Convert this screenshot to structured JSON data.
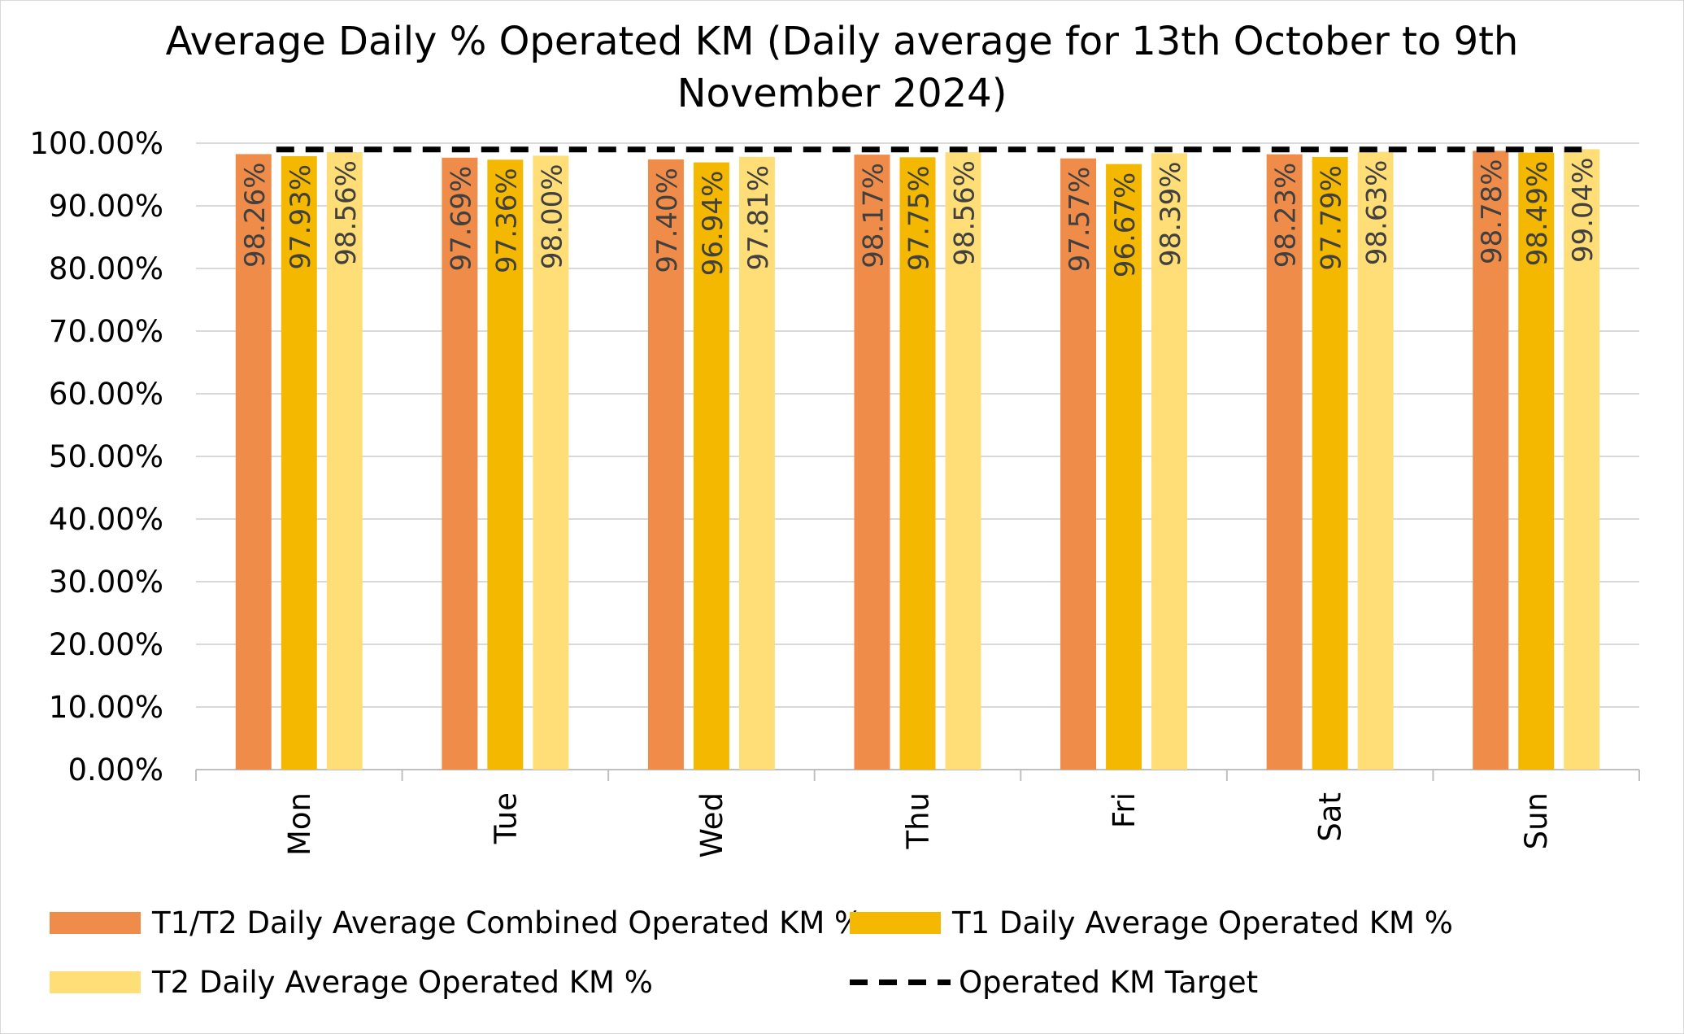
{
  "chart_data": {
    "type": "bar",
    "title_line1": "Average Daily % Operated KM (Daily average for 13th October to 9th",
    "title_line2": "November 2024)",
    "categories": [
      "Mon",
      "Tue",
      "Wed",
      "Thu",
      "Fri",
      "Sat",
      "Sun"
    ],
    "series": [
      {
        "name": "T1/T2 Daily Average Combined Operated KM %",
        "color": "#F08C4A",
        "values": [
          98.26,
          97.69,
          97.4,
          98.17,
          97.57,
          98.23,
          98.78
        ],
        "labels": [
          "98.26%",
          "97.69%",
          "97.40%",
          "98.17%",
          "97.57%",
          "98.23%",
          "98.78%"
        ]
      },
      {
        "name": "T1 Daily Average Operated KM %",
        "color": "#F5B800",
        "values": [
          97.93,
          97.36,
          96.94,
          97.75,
          96.67,
          97.79,
          98.49
        ],
        "labels": [
          "97.93%",
          "97.36%",
          "96.94%",
          "97.75%",
          "96.67%",
          "97.79%",
          "98.49%"
        ]
      },
      {
        "name": "T2 Daily Average Operated KM %",
        "color": "#FFDD77",
        "values": [
          98.56,
          98.0,
          97.81,
          98.56,
          98.39,
          98.63,
          99.04
        ],
        "labels": [
          "98.56%",
          "98.00%",
          "97.81%",
          "98.56%",
          "98.39%",
          "98.63%",
          "99.04%"
        ]
      }
    ],
    "target": {
      "name": "Operated KM Target",
      "value": 99,
      "color": "#000000"
    },
    "ylim": [
      0,
      100
    ],
    "yticks": [
      "0.00%",
      "10.00%",
      "20.00%",
      "30.00%",
      "40.00%",
      "50.00%",
      "60.00%",
      "70.00%",
      "80.00%",
      "90.00%",
      "100.00%"
    ],
    "grid": true,
    "legend_position": "bottom"
  }
}
